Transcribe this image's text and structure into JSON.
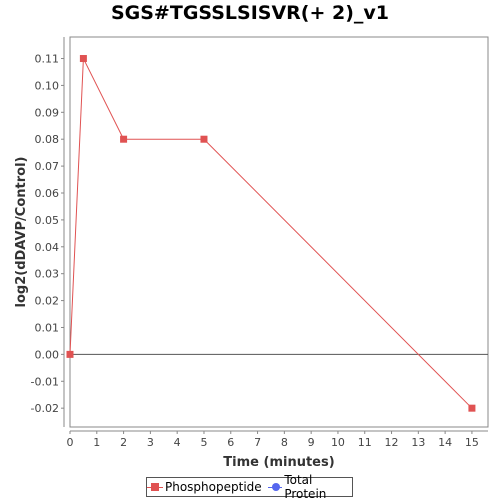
{
  "chart_data": {
    "type": "line",
    "title": "SGS#TGSSLSISVR(+ 2)_v1",
    "xlabel": "Time (minutes)",
    "ylabel": "log2(dDAVP/Control)",
    "xlim": [
      0,
      15.6
    ],
    "ylim": [
      -0.027,
      0.118
    ],
    "xticks": [
      0,
      1,
      2,
      3,
      4,
      5,
      6,
      7,
      8,
      9,
      10,
      11,
      12,
      13,
      14,
      15
    ],
    "yticks": [
      -0.02,
      -0.01,
      0.0,
      0.01,
      0.02,
      0.03,
      0.04,
      0.05,
      0.06,
      0.07,
      0.08,
      0.09,
      0.1,
      0.11
    ],
    "ytick_labels": [
      "-0.02",
      "-0.01",
      "0.00",
      "0.01",
      "0.02",
      "0.03",
      "0.04",
      "0.05",
      "0.06",
      "0.07",
      "0.08",
      "0.09",
      "0.10",
      "0.11"
    ],
    "zero_line": true,
    "grid": false,
    "legend_position": "bottom",
    "series": [
      {
        "name": "Phosphopeptide",
        "color": "#e05252",
        "marker": "square",
        "x": [
          0,
          0.5,
          2,
          5,
          15
        ],
        "y": [
          0.0,
          0.11,
          0.08,
          0.08,
          -0.02
        ]
      },
      {
        "name": "Total Protein",
        "color": "#5566ee",
        "marker": "circle",
        "x": [],
        "y": []
      }
    ]
  }
}
